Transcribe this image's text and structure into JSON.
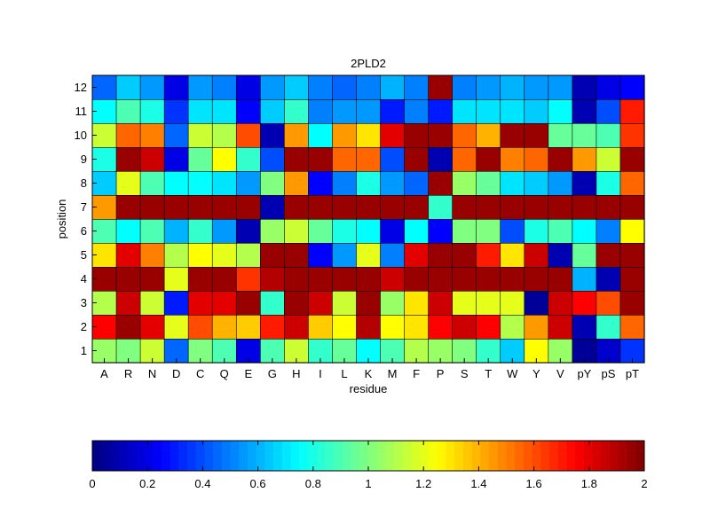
{
  "chart_data": {
    "type": "heatmap",
    "title": "2PLD2",
    "xlabel": "residue",
    "ylabel": "position",
    "x_categories": [
      "A",
      "R",
      "N",
      "D",
      "C",
      "Q",
      "E",
      "G",
      "H",
      "I",
      "L",
      "K",
      "M",
      "F",
      "P",
      "S",
      "T",
      "W",
      "Y",
      "V",
      "pY",
      "pS",
      "pT"
    ],
    "y_categories": [
      "1",
      "2",
      "3",
      "4",
      "5",
      "6",
      "7",
      "8",
      "9",
      "10",
      "11",
      "12"
    ],
    "row_order": "position 1 at bottom, 12 at top",
    "values": [
      [
        1.05,
        1.0,
        1.15,
        0.45,
        1.0,
        0.9,
        0.2,
        0.9,
        1.15,
        0.85,
        0.95,
        0.75,
        0.9,
        1.1,
        1.05,
        1.0,
        0.85,
        0.65,
        1.25,
        1.05,
        0.05,
        0.15,
        0.35
      ],
      [
        1.75,
        1.95,
        1.8,
        1.2,
        1.6,
        1.4,
        1.35,
        1.7,
        1.85,
        1.35,
        1.25,
        1.9,
        1.25,
        1.3,
        1.75,
        1.85,
        1.75,
        1.1,
        1.45,
        1.85,
        0.1,
        0.85,
        1.55
      ],
      [
        1.1,
        1.85,
        1.15,
        0.3,
        1.8,
        1.8,
        1.95,
        0.85,
        1.95,
        1.85,
        1.15,
        1.95,
        1.05,
        1.3,
        1.85,
        1.2,
        1.2,
        1.2,
        0.05,
        1.85,
        1.75,
        1.6,
        1.95
      ],
      [
        1.95,
        1.95,
        1.95,
        1.2,
        1.95,
        1.95,
        1.65,
        1.9,
        1.95,
        1.95,
        1.95,
        1.95,
        1.85,
        1.95,
        1.95,
        1.95,
        1.95,
        1.95,
        1.95,
        1.95,
        0.6,
        0.1,
        1.95
      ],
      [
        1.3,
        1.8,
        1.5,
        1.1,
        1.25,
        1.2,
        1.1,
        1.95,
        1.95,
        0.25,
        0.55,
        1.2,
        0.5,
        1.8,
        1.95,
        1.95,
        1.7,
        1.3,
        1.85,
        0.1,
        0.95,
        1.95,
        1.95
      ],
      [
        0.9,
        0.75,
        0.9,
        0.6,
        0.85,
        0.55,
        0.1,
        1.05,
        1.15,
        0.95,
        0.8,
        0.75,
        0.2,
        0.75,
        0.25,
        1.0,
        1.0,
        0.4,
        0.8,
        0.9,
        0.75,
        0.5,
        1.25
      ],
      [
        1.45,
        1.95,
        1.95,
        1.95,
        1.95,
        1.95,
        1.95,
        0.1,
        1.95,
        1.95,
        1.95,
        1.95,
        1.95,
        1.95,
        0.85,
        1.95,
        1.95,
        1.95,
        1.95,
        1.95,
        1.95,
        1.95,
        1.95
      ],
      [
        0.65,
        1.2,
        0.9,
        0.75,
        0.75,
        0.7,
        0.55,
        1.0,
        1.45,
        0.25,
        0.5,
        0.8,
        0.55,
        0.45,
        1.95,
        1.05,
        0.95,
        0.7,
        0.65,
        0.55,
        0.1,
        0.8,
        1.55
      ],
      [
        0.8,
        1.95,
        1.85,
        0.2,
        0.95,
        1.25,
        0.85,
        0.4,
        1.95,
        1.95,
        1.55,
        1.55,
        0.4,
        1.95,
        0.1,
        1.55,
        1.95,
        1.5,
        1.55,
        1.95,
        1.45,
        1.15,
        1.95
      ],
      [
        1.15,
        1.55,
        1.5,
        0.45,
        1.15,
        1.1,
        1.6,
        0.1,
        1.45,
        0.75,
        1.45,
        1.3,
        1.8,
        1.95,
        1.95,
        1.55,
        1.4,
        1.95,
        1.95,
        0.95,
        0.95,
        0.9,
        1.65
      ],
      [
        0.75,
        0.9,
        0.8,
        0.35,
        0.7,
        0.7,
        0.25,
        0.65,
        0.85,
        0.5,
        0.55,
        0.55,
        0.3,
        0.5,
        0.3,
        0.7,
        0.7,
        0.7,
        0.65,
        0.75,
        0.1,
        0.4,
        1.7
      ],
      [
        0.45,
        0.65,
        0.55,
        0.2,
        0.55,
        0.5,
        0.2,
        0.55,
        0.65,
        0.5,
        0.45,
        0.5,
        0.6,
        0.5,
        1.95,
        0.5,
        0.55,
        0.6,
        0.55,
        0.55,
        0.1,
        0.2,
        0.25
      ]
    ],
    "colorbar": {
      "range": [
        0,
        2
      ],
      "ticks": [
        "0",
        "0.2",
        "0.4",
        "0.6",
        "0.8",
        "1",
        "1.2",
        "1.4",
        "1.6",
        "1.8",
        "2"
      ],
      "colormap": "jet"
    }
  }
}
